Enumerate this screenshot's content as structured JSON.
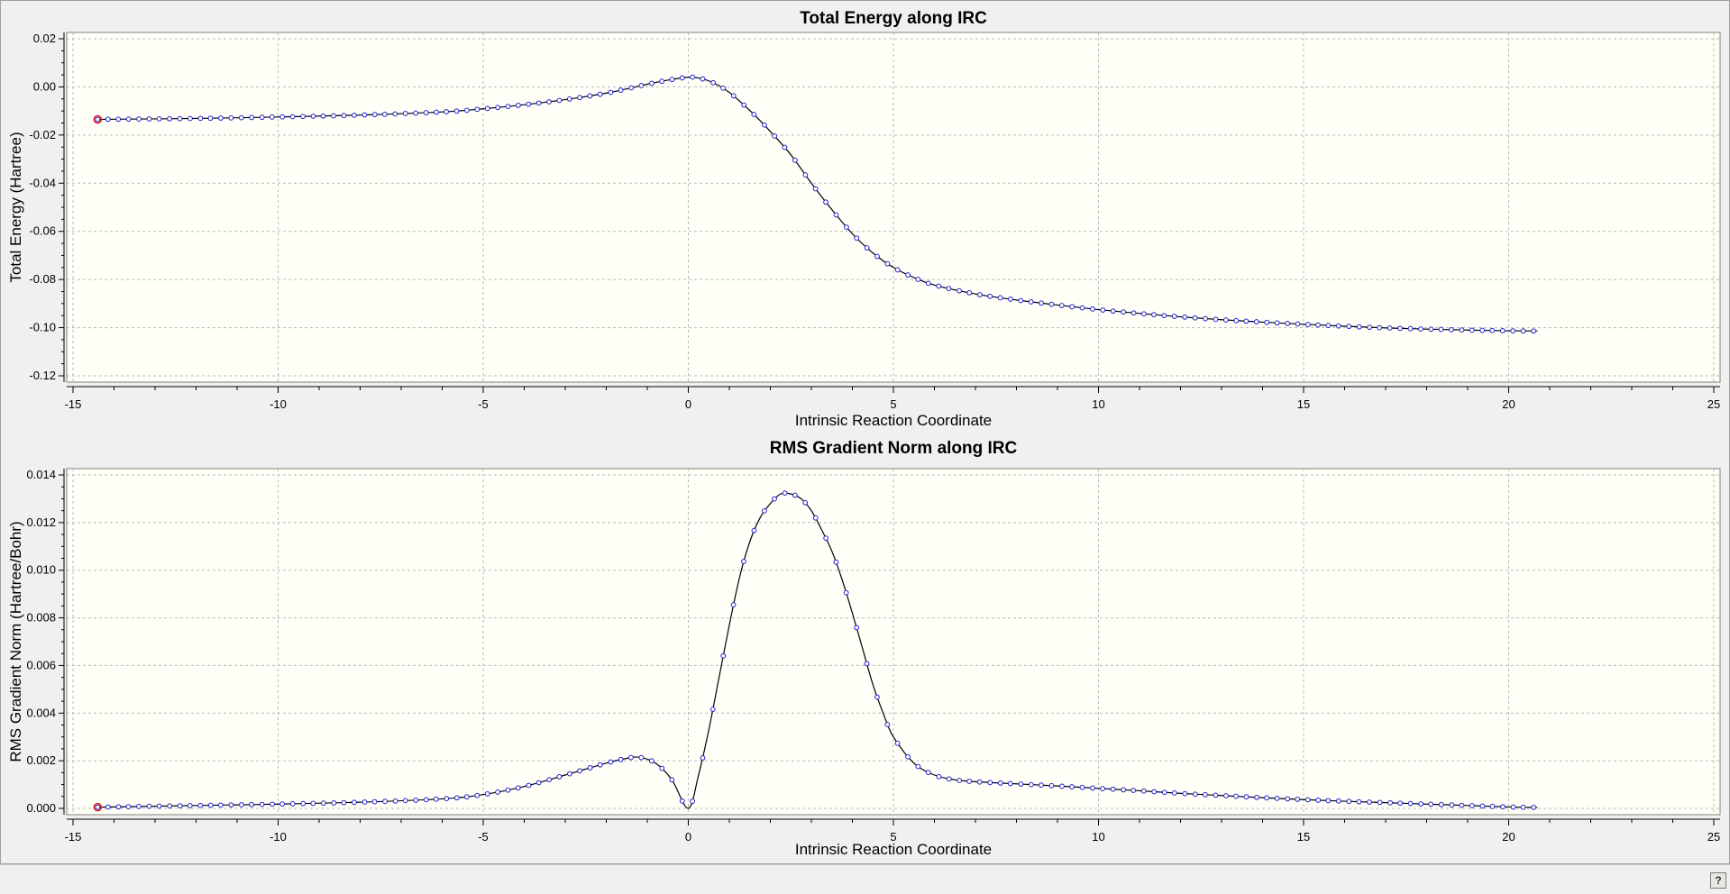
{
  "chart_data": [
    {
      "type": "line",
      "title": "Total Energy along IRC",
      "xlabel": "Intrinsic Reaction Coordinate",
      "ylabel": "Total Energy (Hartree)",
      "xlim": [
        -15,
        25
      ],
      "ylim": [
        -0.12,
        0.02
      ],
      "xticks": [
        -15,
        -10,
        -5,
        0,
        5,
        10,
        15,
        20,
        25
      ],
      "xtick_labels": [
        "-15",
        "-10",
        "-5",
        "0",
        "5",
        "10",
        "15",
        "20",
        "25"
      ],
      "yticks": [
        0.02,
        0.0,
        -0.02,
        -0.04,
        -0.06,
        -0.08,
        -0.1,
        -0.12
      ],
      "ytick_labels": [
        "0.02",
        "0.00",
        "-0.02",
        "-0.04",
        "-0.06",
        "-0.08",
        "-0.10",
        "-0.12"
      ],
      "grid": true,
      "highlight_x": -14.4,
      "series": [
        {
          "x": [
            -14.4,
            -12,
            -10,
            -8,
            -6,
            -5,
            -4,
            -3,
            -2,
            -1.5,
            -1,
            -0.5,
            0,
            0.25,
            0.5,
            0.75,
            1,
            1.25,
            1.5,
            1.75,
            2,
            2.5,
            3,
            3.5,
            4,
            4.5,
            5,
            5.5,
            6,
            7,
            8,
            9,
            10,
            11,
            12,
            13,
            14,
            15,
            16,
            17,
            18,
            19,
            20,
            20.7
          ],
          "y": [
            -0.0135,
            -0.0131,
            -0.0125,
            -0.0117,
            -0.0104,
            -0.0091,
            -0.0074,
            -0.0053,
            -0.0026,
            -0.0008,
            0.0011,
            0.0028,
            0.004,
            0.0037,
            0.0025,
            0.0005,
            -0.0023,
            -0.0059,
            -0.0098,
            -0.014,
            -0.0185,
            -0.0282,
            -0.04,
            -0.051,
            -0.061,
            -0.069,
            -0.075,
            -0.0792,
            -0.0823,
            -0.086,
            -0.0885,
            -0.0906,
            -0.0925,
            -0.0941,
            -0.0955,
            -0.0967,
            -0.0977,
            -0.0986,
            -0.0994,
            -0.1001,
            -0.1006,
            -0.101,
            -0.1013,
            -0.1014
          ]
        }
      ]
    },
    {
      "type": "line",
      "title": "RMS Gradient Norm along IRC",
      "xlabel": "Intrinsic Reaction Coordinate",
      "ylabel": "RMS Gradient Norm (Hartree/Bohr)",
      "xlim": [
        -15,
        25
      ],
      "ylim": [
        0,
        0.014
      ],
      "xticks": [
        -15,
        -10,
        -5,
        0,
        5,
        10,
        15,
        20,
        25
      ],
      "xtick_labels": [
        "-15",
        "-10",
        "-5",
        "0",
        "5",
        "10",
        "15",
        "20",
        "25"
      ],
      "yticks": [
        0.014,
        0.012,
        0.01,
        0.008,
        0.006,
        0.004,
        0.002,
        0.0
      ],
      "ytick_labels": [
        "0.014",
        "0.012",
        "0.010",
        "0.008",
        "0.006",
        "0.004",
        "0.002",
        "0.000"
      ],
      "grid": true,
      "highlight_x": -14.4,
      "series": [
        {
          "x": [
            -14.4,
            -12,
            -10,
            -8,
            -6,
            -5,
            -4,
            -3,
            -2,
            -1.5,
            -1.2,
            -0.8,
            -0.4,
            0,
            0.25,
            0.5,
            0.75,
            1,
            1.25,
            1.5,
            1.75,
            2,
            2.25,
            2.5,
            2.75,
            3,
            3.25,
            3.5,
            3.75,
            4,
            4.25,
            4.5,
            4.75,
            5,
            5.5,
            6,
            6.5,
            7,
            8,
            9,
            10,
            11,
            12,
            13,
            14,
            15,
            16,
            17,
            18,
            19,
            20,
            20.7
          ],
          "y": [
            5e-05,
            0.00012,
            0.00018,
            0.00026,
            0.0004,
            0.00058,
            0.00092,
            0.0014,
            0.0019,
            0.0021,
            0.00215,
            0.0019,
            0.0012,
            0.0,
            0.0014,
            0.0033,
            0.0055,
            0.0077,
            0.0097,
            0.0112,
            0.0122,
            0.0128,
            0.0132,
            0.0132,
            0.013,
            0.0125,
            0.0117,
            0.0108,
            0.0096,
            0.0082,
            0.0067,
            0.0052,
            0.004,
            0.003,
            0.0019,
            0.0014,
            0.0012,
            0.00112,
            0.00103,
            0.00094,
            0.00084,
            0.00074,
            0.00063,
            0.00054,
            0.00045,
            0.00037,
            0.0003,
            0.00024,
            0.00018,
            0.00012,
            6e-05,
            4e-05
          ]
        }
      ]
    }
  ],
  "help_label": "?"
}
